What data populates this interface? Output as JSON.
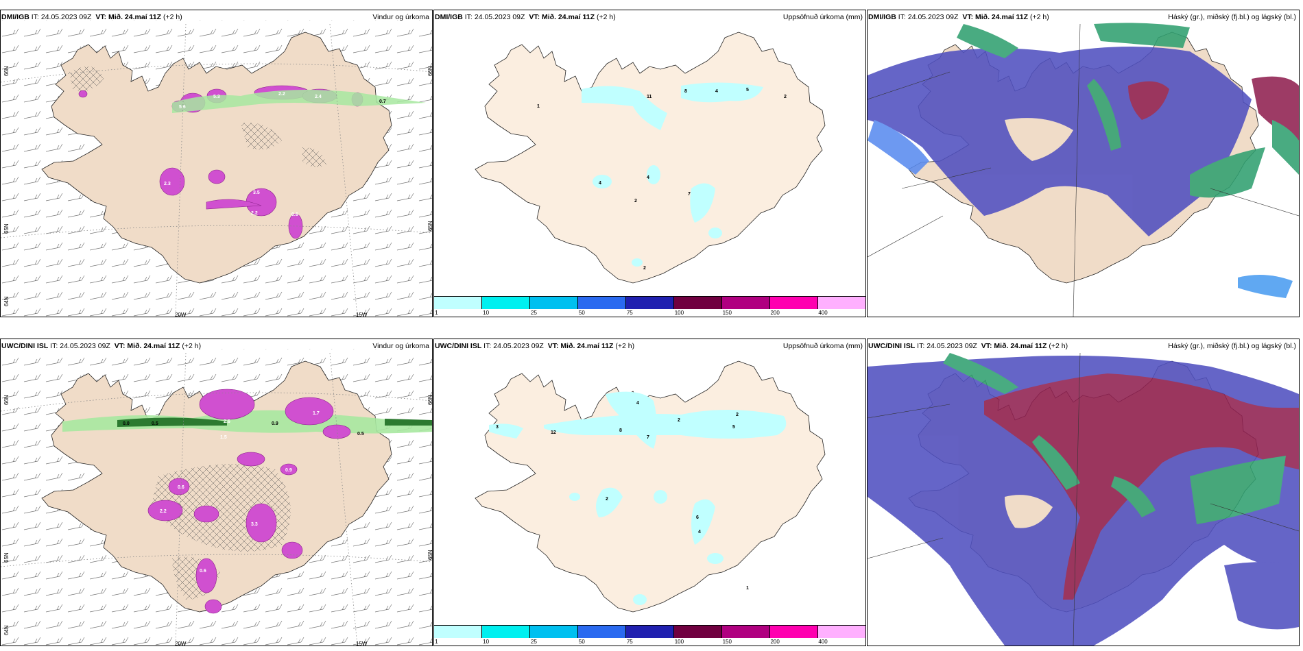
{
  "rows": [
    {
      "model_label": "DMI/IGB",
      "it_label": "IT:",
      "it_value": "24.05.2023 09Z",
      "vt_label": "VT:",
      "vt_value": "Mið. 24.maí 11Z",
      "lead": "(+2 h)"
    },
    {
      "model_label": "UWC/DINI ISL",
      "it_label": "IT:",
      "it_value": "24.05.2023 09Z",
      "vt_label": "VT:",
      "vt_value": "Mið. 24.maí 11Z",
      "lead": "(+2 h)"
    }
  ],
  "panel_titles": {
    "wind": "Vindur og úrkoma",
    "accum": "Uppsöfnuð úrkoma (mm)",
    "cloud": "Háský (gr.), miðský (fj.bl.) og lágský (bl.)"
  },
  "axis_labels": {
    "lat66": "66N",
    "lat65": "65N",
    "lat64": "64N",
    "lon20": "20W",
    "lon15": "15W"
  },
  "colorbar": {
    "ticks": [
      "1",
      "10",
      "25",
      "50",
      "75",
      "100",
      "150",
      "200",
      "400"
    ],
    "colors": [
      "#c0ffff",
      "#00f0f0",
      "#00c0f0",
      "#2a6af0",
      "#2020b0",
      "#700040",
      "#b00080",
      "#ff00b0",
      "#ffb0ff"
    ]
  },
  "colors": {
    "land": "#f0dcc8",
    "land_light": "#fbeee0",
    "accum_cyan": "#c0ffff",
    "precip_magenta": "#d050d0",
    "low_cloud": "#5050c0",
    "mid_cloud": "#902050",
    "high_cloud": "#30a070"
  },
  "wind_precip_values": {
    "top": [
      "5.6",
      "5.3",
      "2.2",
      "2.4",
      "0.7",
      "2.3",
      "3.5",
      "2.2",
      "0.6"
    ],
    "bottom": [
      "0.0",
      "0.5",
      "2.6",
      "0.9",
      "1.7",
      "1.5",
      "0.9",
      "0.6",
      "2.2",
      "3.3",
      "0.6",
      "0.5"
    ]
  },
  "accum_values": {
    "top": [
      "11",
      "8",
      "4",
      "5",
      "2",
      "4",
      "4",
      "7",
      "2",
      "2",
      "1"
    ],
    "bottom": [
      "12",
      "8",
      "7",
      "2",
      "4",
      "2",
      "5",
      "3",
      "2",
      "6",
      "4",
      "1"
    ]
  }
}
